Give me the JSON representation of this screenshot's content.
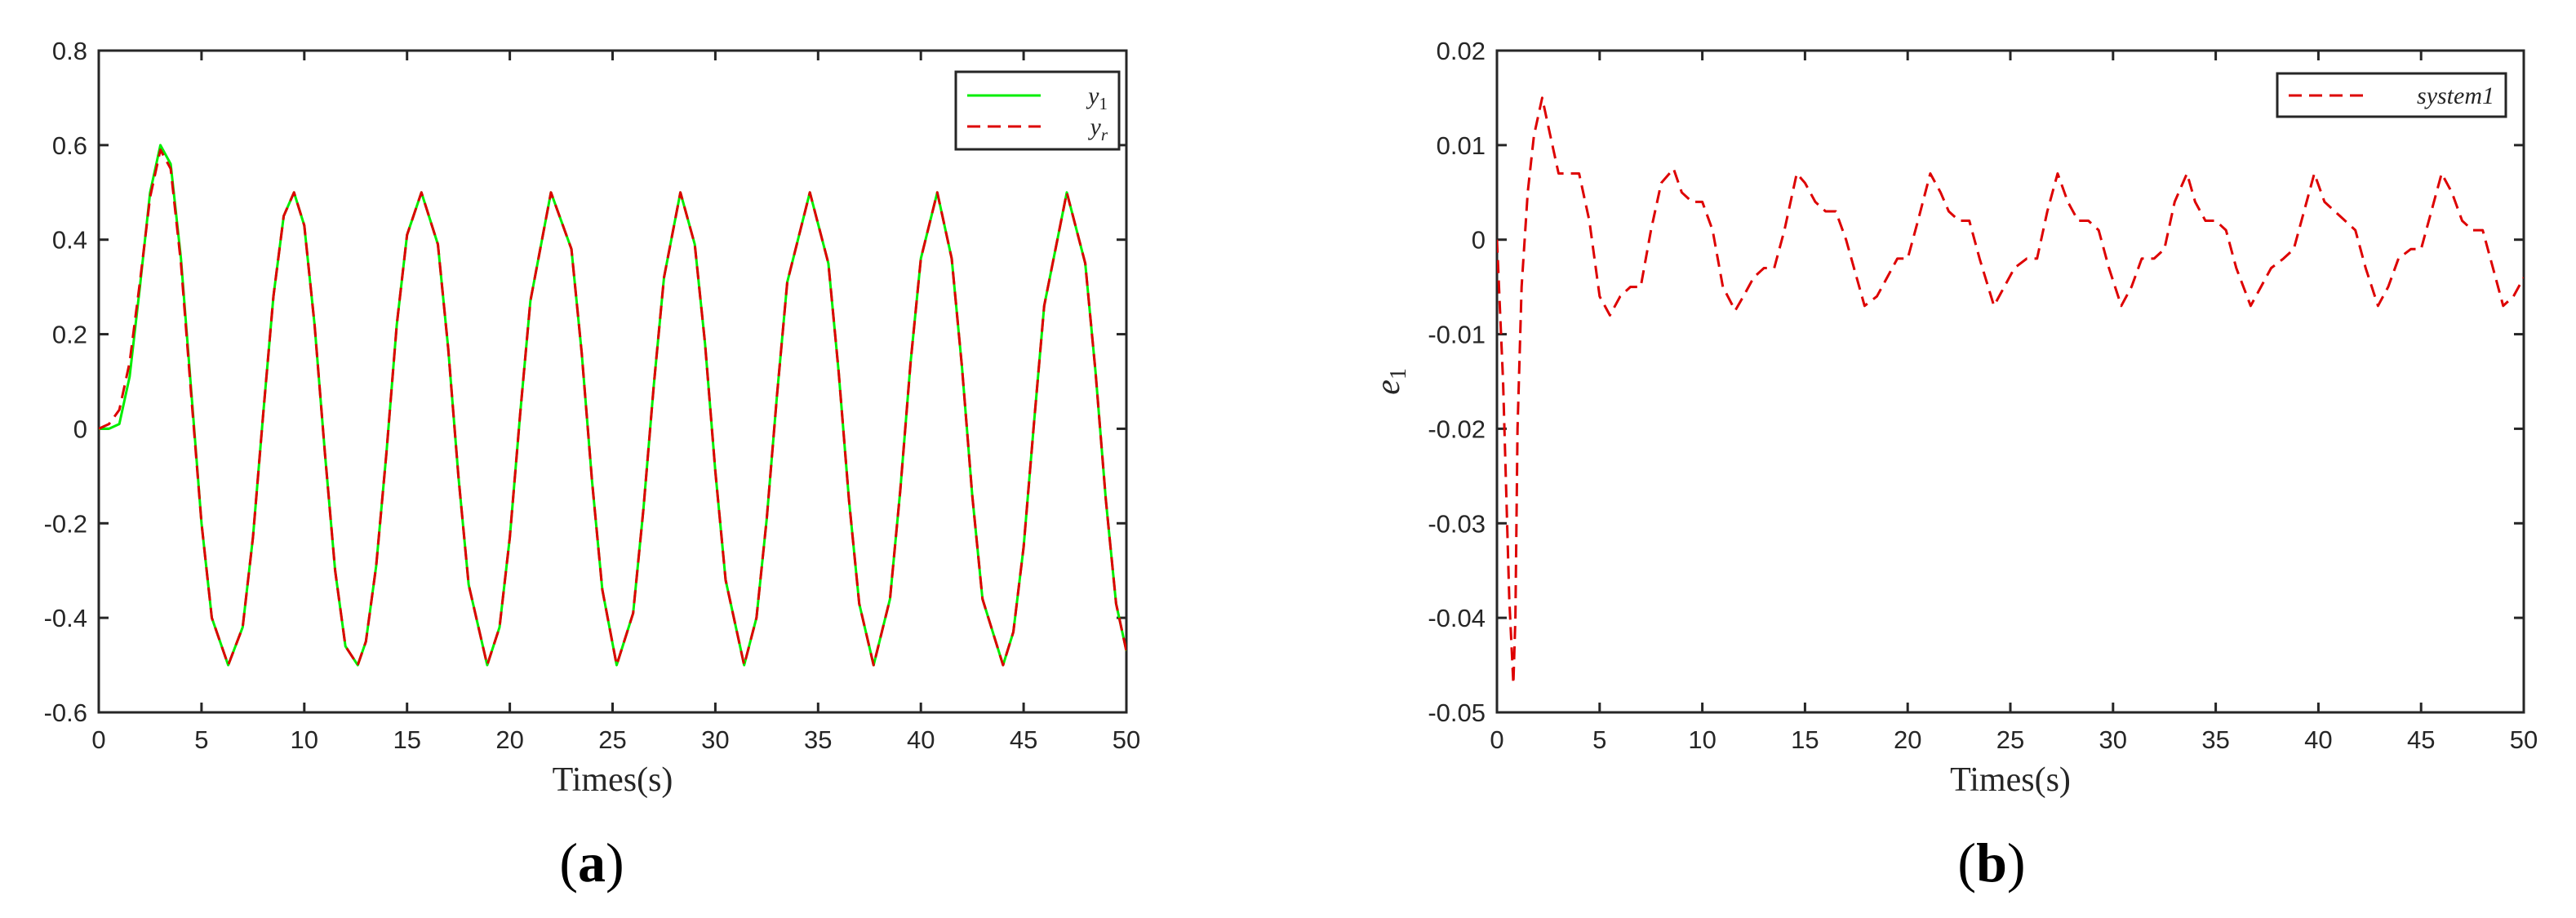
{
  "chart_data": [
    {
      "type": "line",
      "panel_label": "a",
      "xlabel": "Times(s)",
      "ylabel": "",
      "xlim": [
        0,
        50
      ],
      "ylim": [
        -0.6,
        0.8
      ],
      "xticks": [
        0,
        5,
        10,
        15,
        20,
        25,
        30,
        35,
        40,
        45,
        50
      ],
      "xtick_labels": [
        "0",
        "5",
        "10",
        "15",
        "20",
        "25",
        "30",
        "35",
        "40",
        "45",
        "50"
      ],
      "yticks": [
        -0.6,
        -0.4,
        -0.2,
        0,
        0.2,
        0.4,
        0.6,
        0.8
      ],
      "ytick_labels": [
        "-0.6",
        "-0.4",
        "-0.2",
        "0",
        "0.2",
        "0.4",
        "0.6",
        "0.8"
      ],
      "grid": false,
      "legend_position": "top-right",
      "series": [
        {
          "name": "y1",
          "legend_base": "y",
          "legend_sub": "1",
          "color": "#00ee00",
          "dash": "solid",
          "x": [
            0,
            0.5,
            1,
            1.5,
            2,
            2.5,
            3,
            3.5,
            4,
            4.5,
            5,
            5.5,
            6.3,
            7,
            7.5,
            8,
            8.5,
            9,
            9.5,
            10,
            10.5,
            11,
            11.5,
            12,
            12.6,
            13,
            13.5,
            14,
            14.5,
            15,
            15.7,
            16.5,
            17,
            17.5,
            18,
            18.9,
            19.5,
            20,
            20.5,
            21,
            22.0,
            23,
            23.5,
            24,
            24.5,
            25.2,
            26,
            26.5,
            27,
            27.5,
            28.3,
            29,
            29.5,
            30,
            30.5,
            31.4,
            32,
            32.5,
            33,
            33.5,
            34.6,
            35.5,
            36,
            36.5,
            37,
            37.7,
            38.5,
            39,
            39.5,
            40,
            40.8,
            41.5,
            42,
            42.5,
            43,
            44.0,
            44.5,
            45,
            45.5,
            46,
            47.1,
            48,
            48.5,
            49,
            49.5,
            50
          ],
          "y": [
            0,
            0,
            0.01,
            0.11,
            0.3,
            0.5,
            0.6,
            0.56,
            0.36,
            0.08,
            -0.2,
            -0.4,
            -0.5,
            -0.42,
            -0.23,
            0.03,
            0.28,
            0.45,
            0.5,
            0.43,
            0.22,
            -0.05,
            -0.3,
            -0.46,
            -0.5,
            -0.45,
            -0.29,
            -0.05,
            0.22,
            0.41,
            0.5,
            0.39,
            0.17,
            -0.1,
            -0.33,
            -0.5,
            -0.42,
            -0.23,
            0.03,
            0.27,
            0.5,
            0.38,
            0.16,
            -0.11,
            -0.34,
            -0.5,
            -0.39,
            -0.17,
            0.09,
            0.32,
            0.5,
            0.39,
            0.18,
            -0.09,
            -0.32,
            -0.5,
            -0.4,
            -0.19,
            0.07,
            0.31,
            0.5,
            0.35,
            0.12,
            -0.15,
            -0.37,
            -0.5,
            -0.36,
            -0.13,
            0.14,
            0.36,
            0.5,
            0.36,
            0.13,
            -0.14,
            -0.36,
            -0.5,
            -0.43,
            -0.25,
            0.01,
            0.26,
            0.5,
            0.35,
            0.12,
            -0.15,
            -0.37,
            -0.47
          ]
        },
        {
          "name": "yr",
          "legend_base": "y",
          "legend_sub": "r",
          "color": "#dd0000",
          "dash": "dashed",
          "x": [
            0,
            0.5,
            1,
            1.5,
            2,
            2.5,
            3,
            3.5,
            4,
            4.5,
            5,
            5.5,
            6.3,
            7,
            7.5,
            8,
            8.5,
            9,
            9.5,
            10,
            10.5,
            11,
            11.5,
            12,
            12.6,
            13,
            13.5,
            14,
            14.5,
            15,
            15.7,
            16.5,
            17,
            17.5,
            18,
            18.9,
            19.5,
            20,
            20.5,
            21,
            22.0,
            23,
            23.5,
            24,
            24.5,
            25.2,
            26,
            26.5,
            27,
            27.5,
            28.3,
            29,
            29.5,
            30,
            30.5,
            31.4,
            32,
            32.5,
            33,
            33.5,
            34.6,
            35.5,
            36,
            36.5,
            37,
            37.7,
            38.5,
            39,
            39.5,
            40,
            40.8,
            41.5,
            42,
            42.5,
            43,
            44.0,
            44.5,
            45,
            45.5,
            46,
            47.1,
            48,
            48.5,
            49,
            49.5,
            50
          ],
          "y": [
            0,
            0.01,
            0.04,
            0.14,
            0.31,
            0.49,
            0.59,
            0.55,
            0.35,
            0.07,
            -0.2,
            -0.4,
            -0.5,
            -0.42,
            -0.23,
            0.03,
            0.28,
            0.45,
            0.5,
            0.43,
            0.22,
            -0.05,
            -0.3,
            -0.46,
            -0.5,
            -0.45,
            -0.29,
            -0.05,
            0.22,
            0.41,
            0.5,
            0.39,
            0.17,
            -0.1,
            -0.33,
            -0.5,
            -0.42,
            -0.23,
            0.03,
            0.27,
            0.5,
            0.38,
            0.16,
            -0.11,
            -0.34,
            -0.5,
            -0.39,
            -0.17,
            0.09,
            0.32,
            0.5,
            0.39,
            0.18,
            -0.09,
            -0.32,
            -0.5,
            -0.4,
            -0.19,
            0.07,
            0.31,
            0.5,
            0.35,
            0.12,
            -0.15,
            -0.37,
            -0.5,
            -0.36,
            -0.13,
            0.14,
            0.36,
            0.5,
            0.36,
            0.13,
            -0.14,
            -0.36,
            -0.5,
            -0.43,
            -0.25,
            0.01,
            0.26,
            0.5,
            0.35,
            0.12,
            -0.15,
            -0.37,
            -0.47
          ]
        }
      ]
    },
    {
      "type": "line",
      "panel_label": "b",
      "xlabel": "Times(s)",
      "ylabel_base": "e",
      "ylabel_sub": "1",
      "xlim": [
        0,
        50
      ],
      "ylim": [
        -0.05,
        0.02
      ],
      "xticks": [
        0,
        5,
        10,
        15,
        20,
        25,
        30,
        35,
        40,
        45,
        50
      ],
      "xtick_labels": [
        "0",
        "5",
        "10",
        "15",
        "20",
        "25",
        "30",
        "35",
        "40",
        "45",
        "50"
      ],
      "yticks": [
        -0.05,
        -0.04,
        -0.03,
        -0.02,
        -0.01,
        0,
        0.01,
        0.02
      ],
      "ytick_labels": [
        "-0.05",
        "-0.04",
        "-0.03",
        "-0.02",
        "-0.01",
        "0",
        "0.01",
        "0.02"
      ],
      "grid": false,
      "legend_position": "top-right",
      "series": [
        {
          "name": "system1",
          "color": "#dd0000",
          "dash": "dashed",
          "x": [
            0,
            0.3,
            0.6,
            0.8,
            0.9,
            1.0,
            1.2,
            1.5,
            1.8,
            2.2,
            2.6,
            3.0,
            3.5,
            4.0,
            4.5,
            5.0,
            5.5,
            6.0,
            6.5,
            7.0,
            7.5,
            8.0,
            8.6,
            9.0,
            9.5,
            10.0,
            10.5,
            11.0,
            11.6,
            12.0,
            12.5,
            13.0,
            13.5,
            14.0,
            14.6,
            15.0,
            15.5,
            16.0,
            16.5,
            17.0,
            17.9,
            18.5,
            19.0,
            19.5,
            20.0,
            20.5,
            21.1,
            21.6,
            22.0,
            22.5,
            23.0,
            23.5,
            24.2,
            24.7,
            25.2,
            25.8,
            26.3,
            26.8,
            27.3,
            27.8,
            28.3,
            28.8,
            29.3,
            29.8,
            30.4,
            30.9,
            31.4,
            32.0,
            32.5,
            33.0,
            33.6,
            34.0,
            34.5,
            35.0,
            35.5,
            36.0,
            36.7,
            37.2,
            37.7,
            38.3,
            38.8,
            39.3,
            39.8,
            40.3,
            40.8,
            41.3,
            41.8,
            42.3,
            42.9,
            43.4,
            43.9,
            44.5,
            45.0,
            45.5,
            46.0,
            46.5,
            47.0,
            47.5,
            48.0,
            48.5,
            49.0,
            49.5,
            50.0
          ],
          "y": [
            0,
            -0.015,
            -0.038,
            -0.047,
            -0.04,
            -0.02,
            -0.005,
            0.005,
            0.011,
            0.015,
            0.011,
            0.007,
            0.007,
            0.007,
            0.002,
            -0.006,
            -0.008,
            -0.006,
            -0.005,
            -0.005,
            0.001,
            0.006,
            0.0075,
            0.005,
            0.004,
            0.004,
            0.001,
            -0.005,
            -0.0075,
            -0.006,
            -0.004,
            -0.003,
            -0.003,
            0.001,
            0.007,
            0.006,
            0.004,
            0.003,
            0.003,
            0.0,
            -0.007,
            -0.006,
            -0.004,
            -0.002,
            -0.002,
            0.002,
            0.007,
            0.005,
            0.003,
            0.002,
            0.002,
            -0.002,
            -0.007,
            -0.005,
            -0.003,
            -0.002,
            -0.002,
            0.003,
            0.007,
            0.004,
            0.002,
            0.002,
            0.001,
            -0.003,
            -0.007,
            -0.005,
            -0.002,
            -0.002,
            -0.001,
            0.004,
            0.007,
            0.004,
            0.002,
            0.002,
            0.001,
            -0.003,
            -0.007,
            -0.005,
            -0.003,
            -0.002,
            -0.001,
            0.003,
            0.007,
            0.004,
            0.003,
            0.002,
            0.001,
            -0.003,
            -0.007,
            -0.005,
            -0.002,
            -0.001,
            -0.001,
            0.003,
            0.007,
            0.005,
            0.002,
            0.001,
            0.001,
            -0.003,
            -0.007,
            -0.006,
            -0.004
          ]
        }
      ]
    }
  ]
}
